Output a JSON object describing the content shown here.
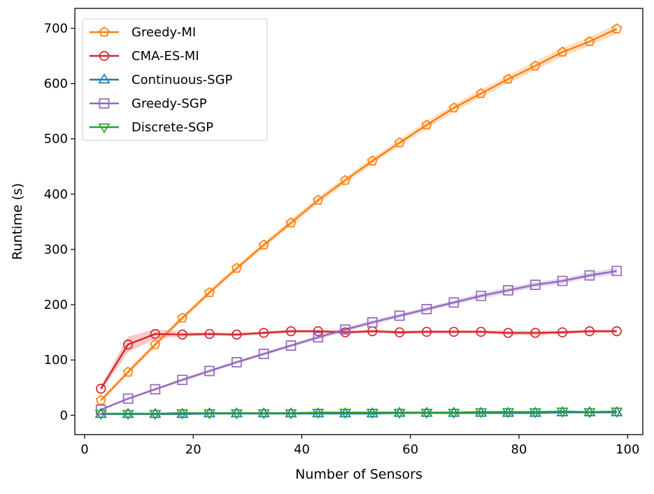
{
  "chart_data": {
    "type": "line",
    "title": "",
    "xlabel": "Number of Sensors",
    "ylabel": "Runtime (s)",
    "xlim": [
      -1.8,
      102.8
    ],
    "ylim": [
      -35,
      736
    ],
    "xticks": [
      0,
      20,
      40,
      60,
      80,
      100
    ],
    "yticks": [
      0,
      100,
      200,
      300,
      400,
      500,
      600,
      700
    ],
    "legend_position": "top-left",
    "x": [
      3,
      8,
      13,
      18,
      23,
      28,
      33,
      38,
      43,
      48,
      53,
      58,
      63,
      68,
      73,
      78,
      83,
      88,
      93,
      98
    ],
    "series": [
      {
        "name": "Greedy-MI",
        "color": "#ff7f0e",
        "marker": "pentagon",
        "values": [
          27,
          78,
          128,
          176,
          222,
          266,
          308,
          348,
          389,
          425,
          460,
          493,
          525,
          556,
          582,
          608,
          632,
          657,
          676,
          699
        ],
        "band": [
          4,
          5,
          5,
          5,
          5,
          5,
          5,
          6,
          6,
          6,
          6,
          6,
          7,
          7,
          7,
          7,
          8,
          8,
          8,
          9
        ]
      },
      {
        "name": "CMA-ES-MI",
        "color": "#d62728",
        "marker": "circle",
        "values": [
          48,
          128,
          147,
          146,
          147,
          146,
          149,
          152,
          152,
          150,
          152,
          150,
          151,
          151,
          151,
          149,
          149,
          150,
          152,
          152
        ],
        "band": [
          5,
          14,
          9,
          4,
          3,
          3,
          3,
          3,
          3,
          3,
          3,
          3,
          3,
          3,
          3,
          4,
          4,
          3,
          3,
          3
        ]
      },
      {
        "name": "Continuous-SGP",
        "color": "#1f77b4",
        "marker": "triangle-up",
        "values": [
          2,
          2,
          2,
          2,
          3,
          3,
          3,
          3,
          3,
          3,
          3,
          4,
          4,
          4,
          4,
          4,
          4,
          5,
          5,
          5
        ],
        "band": [
          1,
          1,
          1,
          1,
          1,
          1,
          1,
          1,
          1,
          1,
          1,
          1,
          1,
          1,
          1,
          1,
          1,
          1,
          1,
          1
        ]
      },
      {
        "name": "Greedy-SGP",
        "color": "#9467bd",
        "marker": "square",
        "values": [
          10,
          30,
          47,
          64,
          80,
          96,
          111,
          126,
          141,
          155,
          168,
          180,
          192,
          204,
          216,
          226,
          236,
          243,
          253,
          261
        ],
        "band": [
          2,
          2,
          2,
          3,
          3,
          3,
          3,
          3,
          4,
          4,
          4,
          4,
          4,
          4,
          5,
          5,
          5,
          5,
          5,
          6
        ]
      },
      {
        "name": "Discrete-SGP",
        "color": "#2ca02c",
        "marker": "triangle-down",
        "values": [
          3,
          3,
          3,
          4,
          4,
          4,
          4,
          4,
          5,
          5,
          5,
          5,
          5,
          5,
          6,
          6,
          6,
          7,
          6,
          7
        ],
        "band": [
          1,
          1,
          1,
          1,
          1,
          1,
          1,
          1,
          1,
          1,
          1,
          1,
          1,
          1,
          1,
          1,
          1,
          1,
          1,
          1
        ]
      }
    ]
  }
}
